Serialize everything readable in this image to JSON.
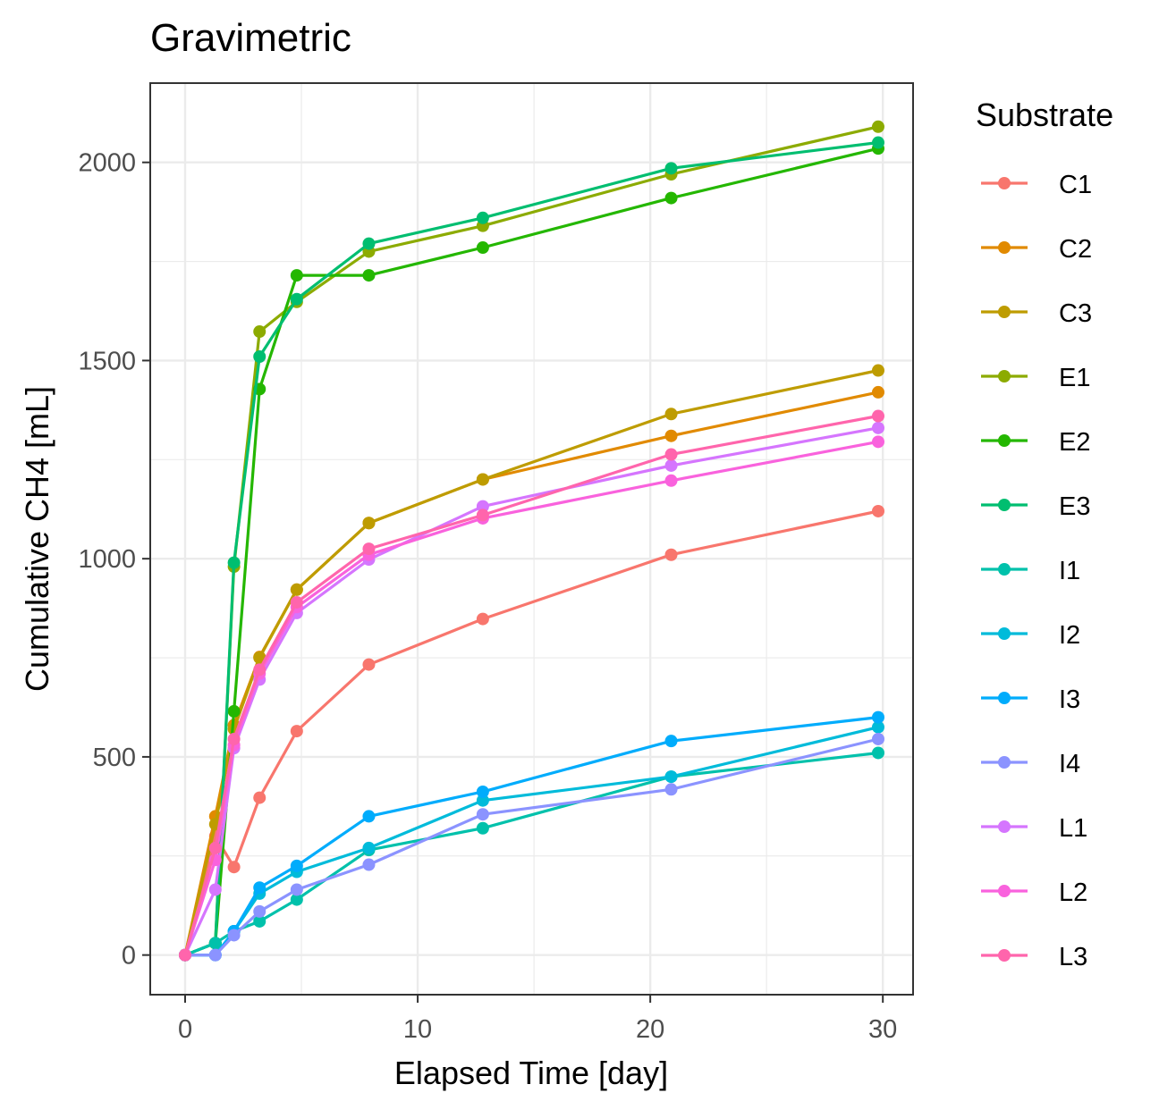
{
  "chart_data": {
    "type": "line",
    "title": "Gravimetric",
    "xlabel": "Elapsed Time [day]",
    "ylabel": "Cumulative CH4 [mL]",
    "xlim": [
      -1.5,
      31.3
    ],
    "ylim": [
      -100,
      2200
    ],
    "xticks": [
      0,
      10,
      20,
      30
    ],
    "yticks": [
      0,
      500,
      1000,
      1500,
      2000
    ],
    "grid": true,
    "legend": {
      "title": "Substrate",
      "position": "right"
    },
    "series": [
      {
        "name": "C1",
        "color": "#F8766D",
        "x": [
          0,
          1.3,
          2.1,
          3.2,
          4.8,
          7.9,
          12.8,
          20.9,
          29.8
        ],
        "y": [
          0,
          300,
          222,
          397,
          565,
          733,
          848,
          1010,
          1120
        ]
      },
      {
        "name": "C2",
        "color": "#E18A00",
        "x": [
          0,
          1.3,
          2.1,
          3.2,
          4.8,
          7.9,
          12.8,
          20.9,
          29.8
        ],
        "y": [
          0,
          350,
          580,
          752,
          922,
          1090,
          1200,
          1310,
          1420
        ]
      },
      {
        "name": "C3",
        "color": "#BE9C00",
        "x": [
          0,
          1.3,
          2.1,
          3.2,
          4.8,
          7.9,
          12.8,
          20.9,
          29.8
        ],
        "y": [
          0,
          330,
          570,
          750,
          922,
          1090,
          1200,
          1365,
          1475
        ]
      },
      {
        "name": "E1",
        "color": "#8CAB00",
        "x": [
          0,
          1.3,
          2.1,
          3.2,
          4.8,
          7.9,
          12.8,
          20.9,
          29.8
        ],
        "y": [
          0,
          30,
          980,
          1573,
          1648,
          1775,
          1840,
          1970,
          2090
        ]
      },
      {
        "name": "E2",
        "color": "#24B700",
        "x": [
          0,
          1.3,
          2.1,
          3.2,
          4.8,
          7.9,
          12.8,
          20.9,
          29.8
        ],
        "y": [
          0,
          30,
          615,
          1428,
          1715,
          1715,
          1785,
          1910,
          2035
        ]
      },
      {
        "name": "E3",
        "color": "#00BE70",
        "x": [
          0,
          1.3,
          2.1,
          3.2,
          4.8,
          7.9,
          12.8,
          20.9,
          29.8
        ],
        "y": [
          0,
          30,
          990,
          1510,
          1655,
          1795,
          1860,
          1985,
          2050
        ]
      },
      {
        "name": "I1",
        "color": "#00C1AB",
        "x": [
          0,
          1.3,
          2.1,
          3.2,
          4.8,
          7.9,
          12.8,
          20.9,
          29.8
        ],
        "y": [
          0,
          30,
          60,
          85,
          140,
          265,
          320,
          450,
          510
        ]
      },
      {
        "name": "I2",
        "color": "#00BBDA",
        "x": [
          0,
          1.3,
          2.1,
          3.2,
          4.8,
          7.9,
          12.8,
          20.9,
          29.8
        ],
        "y": [
          0,
          0,
          60,
          155,
          210,
          270,
          390,
          450,
          575
        ]
      },
      {
        "name": "I3",
        "color": "#00ACFC",
        "x": [
          0,
          1.3,
          2.1,
          3.2,
          4.8,
          7.9,
          12.8,
          20.9,
          29.8
        ],
        "y": [
          0,
          0,
          60,
          170,
          225,
          350,
          412,
          540,
          600
        ]
      },
      {
        "name": "I4",
        "color": "#8B93FF",
        "x": [
          0,
          1.3,
          2.1,
          3.2,
          4.8,
          7.9,
          12.8,
          20.9,
          29.8
        ],
        "y": [
          0,
          0,
          50,
          110,
          165,
          228,
          355,
          418,
          545
        ]
      },
      {
        "name": "L1",
        "color": "#D575FE",
        "x": [
          0,
          1.3,
          2.1,
          3.2,
          4.8,
          7.9,
          12.8,
          20.9,
          29.8
        ],
        "y": [
          0,
          165,
          522,
          695,
          863,
          998,
          1132,
          1235,
          1330
        ]
      },
      {
        "name": "L2",
        "color": "#F962DD",
        "x": [
          0,
          1.3,
          2.1,
          3.2,
          4.8,
          7.9,
          12.8,
          20.9,
          29.8
        ],
        "y": [
          0,
          240,
          530,
          710,
          878,
          1010,
          1102,
          1197,
          1295
        ]
      },
      {
        "name": "L3",
        "color": "#FF65AC",
        "x": [
          0,
          1.3,
          2.1,
          3.2,
          4.8,
          7.9,
          12.8,
          20.9,
          29.8
        ],
        "y": [
          0,
          270,
          545,
          720,
          890,
          1025,
          1110,
          1263,
          1360
        ]
      }
    ]
  }
}
